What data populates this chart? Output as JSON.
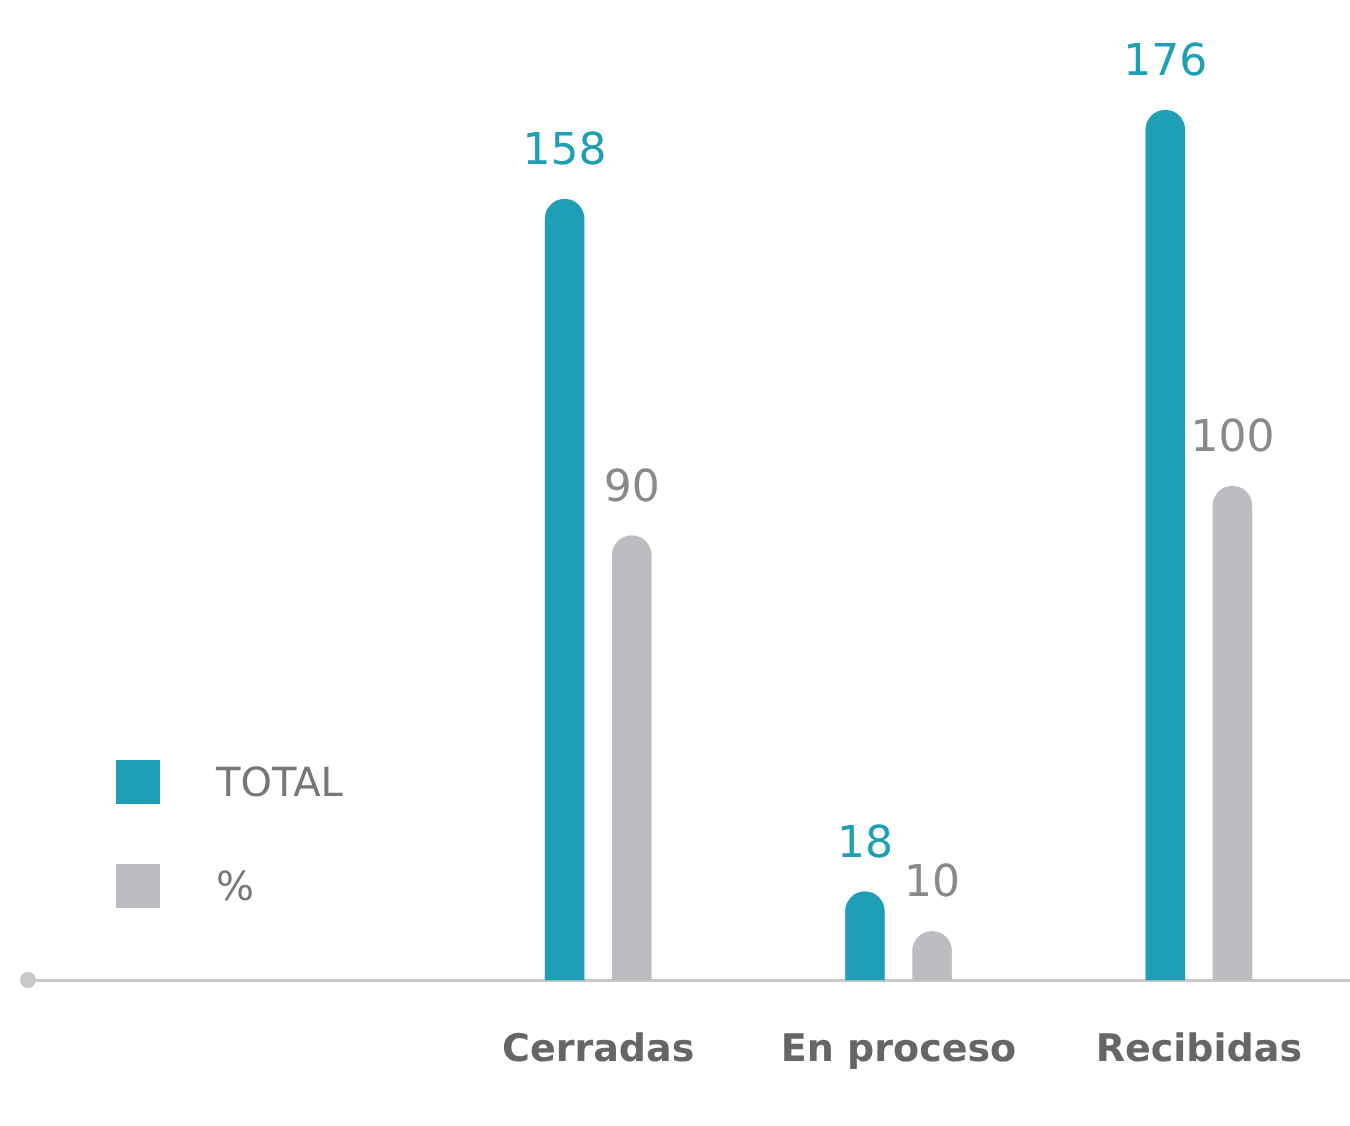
{
  "chart_data": {
    "type": "bar",
    "categories": [
      "Cerradas",
      "En proceso",
      "Recibidas"
    ],
    "series": [
      {
        "name": "TOTAL",
        "color": "#1f9fb5",
        "values": [
          158,
          18,
          176
        ]
      },
      {
        "name": "%",
        "color": "#bdbdc1",
        "values": [
          90,
          10,
          100
        ]
      }
    ],
    "data_labels": true,
    "legend": "left",
    "grid": false
  }
}
